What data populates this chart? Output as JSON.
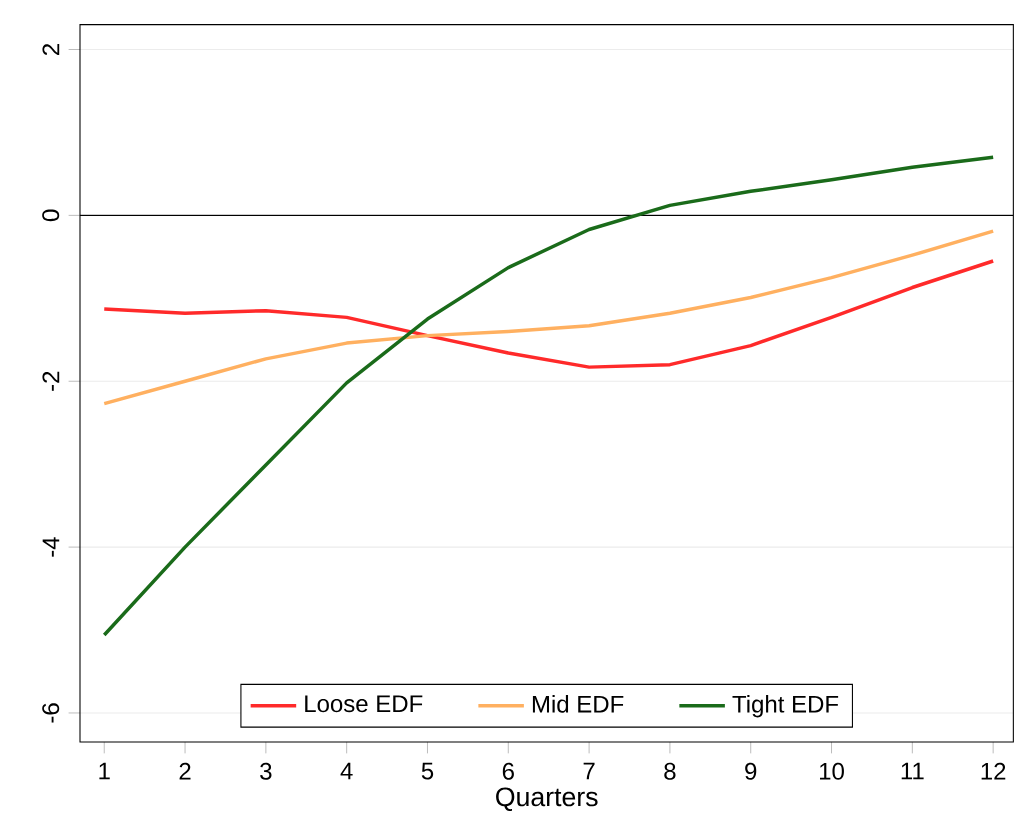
{
  "chart_data": {
    "type": "line",
    "xlabel": "Quarters",
    "x": [
      1,
      2,
      3,
      4,
      5,
      6,
      7,
      8,
      9,
      10,
      11,
      12
    ],
    "series": [
      {
        "name": "Loose EDF",
        "color": "#ff2a2a",
        "values": [
          -1.13,
          -1.18,
          -1.15,
          -1.23,
          -1.45,
          -1.66,
          -1.83,
          -1.8,
          -1.57,
          -1.23,
          -0.87,
          -0.55
        ]
      },
      {
        "name": "Mid EDF",
        "color": "#ffb060",
        "values": [
          -2.27,
          -2.0,
          -1.73,
          -1.54,
          -1.45,
          -1.4,
          -1.33,
          -1.18,
          -0.99,
          -0.75,
          -0.48,
          -0.19
        ]
      },
      {
        "name": "Tight EDF",
        "color": "#1a6b1a",
        "values": [
          -5.06,
          -4.0,
          -3.01,
          -2.02,
          -1.25,
          -0.63,
          -0.17,
          0.12,
          0.29,
          0.43,
          0.58,
          0.7
        ]
      }
    ],
    "xlim": [
      0.7,
      12.25
    ],
    "ylim": [
      -6.35,
      2.3
    ],
    "xticks": [
      1,
      2,
      3,
      4,
      5,
      6,
      7,
      8,
      9,
      10,
      11,
      12
    ],
    "yticks": [
      -6,
      -4,
      -2,
      0,
      2
    ],
    "ref_lines": [
      {
        "axis": "y",
        "value": 0,
        "color": "#000000"
      }
    ],
    "grid": "y",
    "legend": "bottom"
  }
}
